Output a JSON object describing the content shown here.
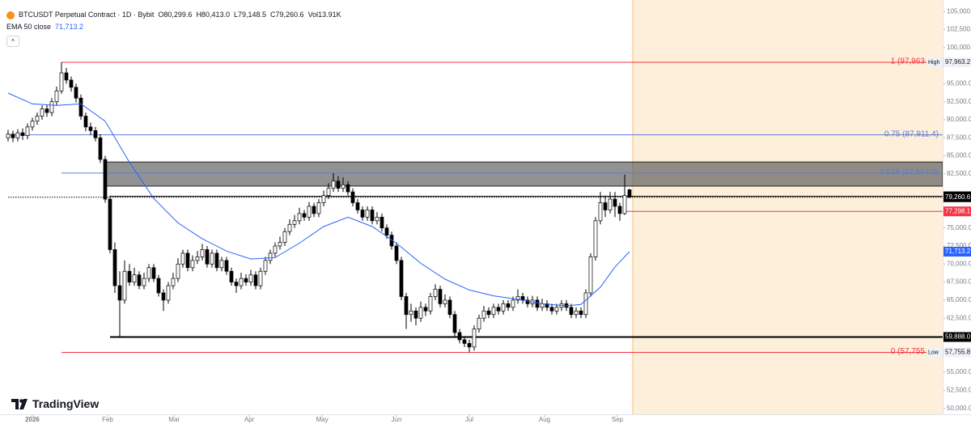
{
  "chart_data": {
    "type": "candlestick",
    "title": "BTCUSDT Perpetual Contract · 1D · Bybit",
    "ohlc_legend": [
      "O80,299.6",
      "H80,413.0",
      "L79,148.5",
      "C79,260.6",
      "Vol13.91K"
    ],
    "brand": "TradingView",
    "xlim": [
      -0.33,
      192.5
    ],
    "ylim": [
      49400,
      105700
    ],
    "grid": false,
    "xticks": [
      {
        "value": 5,
        "label": "2026"
      },
      {
        "value": 20.5,
        "label": "Feb"
      },
      {
        "value": 34.2,
        "label": "Mar"
      },
      {
        "value": 49.7,
        "label": "Apr"
      },
      {
        "value": 64.7,
        "label": "May"
      },
      {
        "value": 80,
        "label": "Jun"
      },
      {
        "value": 95,
        "label": "Jul"
      },
      {
        "value": 110.5,
        "label": "Aug"
      },
      {
        "value": 125.5,
        "label": "Sep"
      }
    ],
    "yticks": [
      {
        "value": 105000,
        "label": "105,000.0"
      },
      {
        "value": 102500,
        "label": "102,500.0"
      },
      {
        "value": 100000,
        "label": "100,000.0"
      },
      {
        "value": 95000,
        "label": "95,000.0"
      },
      {
        "value": 92500,
        "label": "92,500.0"
      },
      {
        "value": 90000,
        "label": "90,000.0"
      },
      {
        "value": 87500,
        "label": "87,500.0"
      },
      {
        "value": 85000,
        "label": "85,000.0"
      },
      {
        "value": 82500,
        "label": "82,500.0"
      },
      {
        "value": 75000,
        "label": "75,000.0"
      },
      {
        "value": 72500,
        "label": "72,500.0"
      },
      {
        "value": 70000,
        "label": "70,000.0"
      },
      {
        "value": 67500,
        "label": "67,500.0"
      },
      {
        "value": 65000,
        "label": "65,000.0"
      },
      {
        "value": 62500,
        "label": "62,500.0"
      },
      {
        "value": 55000,
        "label": "55,000.0"
      },
      {
        "value": 52500,
        "label": "52,500.0"
      },
      {
        "value": 50000,
        "label": "50,000.0"
      }
    ],
    "candles": {
      "up_color": "#ffffff",
      "down_color": "#000000",
      "border_color": "#000000",
      "ohlc": [
        [
          87500,
          88600,
          87000,
          88000
        ],
        [
          88000,
          88500,
          86900,
          87500
        ],
        [
          87500,
          88700,
          87000,
          88200
        ],
        [
          88200,
          88800,
          87200,
          87800
        ],
        [
          87800,
          89500,
          87300,
          89000
        ],
        [
          89000,
          90300,
          88500,
          89800
        ],
        [
          89800,
          91000,
          89300,
          90500
        ],
        [
          90500,
          92000,
          90000,
          91500
        ],
        [
          91500,
          92100,
          90400,
          91000
        ],
        [
          91000,
          93000,
          90500,
          92500
        ],
        [
          92500,
          94600,
          92000,
          94000
        ],
        [
          94000,
          97963.2,
          93600,
          96500
        ],
        [
          96500,
          97200,
          95000,
          95500
        ],
        [
          95500,
          96000,
          93900,
          94500
        ],
        [
          94500,
          95000,
          92400,
          93000
        ],
        [
          93000,
          93500,
          90000,
          90500
        ],
        [
          90500,
          91000,
          88400,
          89000
        ],
        [
          89000,
          89600,
          87900,
          88500
        ],
        [
          88500,
          89000,
          87000,
          87500
        ],
        [
          87500,
          88000,
          84000,
          84500
        ],
        [
          84500,
          85000,
          78500,
          79000
        ],
        [
          79000,
          79500,
          71500,
          72000
        ],
        [
          72000,
          73000,
          66000,
          67000
        ],
        [
          67000,
          69000,
          59888,
          65000
        ],
        [
          65000,
          70500,
          64500,
          69000
        ],
        [
          69000,
          70000,
          67000,
          67500
        ],
        [
          67500,
          69500,
          67000,
          68500
        ],
        [
          68500,
          69000,
          66500,
          67000
        ],
        [
          67000,
          68800,
          66500,
          68000
        ],
        [
          68000,
          70000,
          67500,
          69500
        ],
        [
          69500,
          70000,
          67500,
          68000
        ],
        [
          68000,
          68500,
          65500,
          66000
        ],
        [
          66000,
          66500,
          63500,
          65000
        ],
        [
          65000,
          67500,
          64500,
          67000
        ],
        [
          67000,
          68800,
          66500,
          68000
        ],
        [
          68000,
          70800,
          67500,
          70000
        ],
        [
          70000,
          72000,
          69500,
          71500
        ],
        [
          71500,
          72000,
          69000,
          69500
        ],
        [
          69500,
          71200,
          69000,
          70500
        ],
        [
          70500,
          71800,
          70000,
          71000
        ],
        [
          71000,
          72800,
          70500,
          72000
        ],
        [
          72000,
          72500,
          69500,
          70000
        ],
        [
          70000,
          72000,
          69500,
          71500
        ],
        [
          71500,
          72000,
          69000,
          69500
        ],
        [
          69500,
          71000,
          69000,
          70500
        ],
        [
          70500,
          71000,
          68500,
          69000
        ],
        [
          69000,
          69500,
          67000,
          67500
        ],
        [
          67500,
          68000,
          66000,
          67000
        ],
        [
          67000,
          68800,
          66500,
          68000
        ],
        [
          68000,
          68600,
          67000,
          67500
        ],
        [
          67500,
          69200,
          67000,
          68500
        ],
        [
          68500,
          69000,
          66500,
          67000
        ],
        [
          67000,
          69500,
          66500,
          69000
        ],
        [
          69000,
          71000,
          68500,
          70500
        ],
        [
          70500,
          72000,
          70000,
          71500
        ],
        [
          71500,
          73000,
          71000,
          72500
        ],
        [
          72500,
          73800,
          72000,
          73000
        ],
        [
          73000,
          75000,
          72500,
          74500
        ],
        [
          74500,
          76200,
          74000,
          75500
        ],
        [
          75500,
          76800,
          75000,
          76000
        ],
        [
          76000,
          77800,
          75500,
          77000
        ],
        [
          77000,
          77500,
          76000,
          76500
        ],
        [
          76500,
          78600,
          76000,
          78000
        ],
        [
          78000,
          78500,
          76500,
          77000
        ],
        [
          77000,
          79000,
          76500,
          78500
        ],
        [
          78500,
          80200,
          78000,
          79500
        ],
        [
          79500,
          81200,
          79000,
          80500
        ],
        [
          80500,
          82600,
          80000,
          81500
        ],
        [
          81500,
          82200,
          80000,
          80500
        ],
        [
          80500,
          82000,
          80000,
          81000
        ],
        [
          81000,
          81500,
          79500,
          80000
        ],
        [
          80000,
          80500,
          78000,
          78500
        ],
        [
          78500,
          79000,
          77000,
          77500
        ],
        [
          77500,
          78000,
          76000,
          76500
        ],
        [
          76500,
          78000,
          76000,
          77500
        ],
        [
          77500,
          78000,
          75500,
          76000
        ],
        [
          76000,
          77200,
          75500,
          76500
        ],
        [
          76500,
          77000,
          74500,
          75000
        ],
        [
          75000,
          75500,
          73500,
          74000
        ],
        [
          74000,
          74500,
          72000,
          72500
        ],
        [
          72500,
          73000,
          70000,
          70500
        ],
        [
          70500,
          71000,
          65000,
          65500
        ],
        [
          65500,
          66000,
          61000,
          63000
        ],
        [
          63000,
          64500,
          62000,
          63500
        ],
        [
          63500,
          64000,
          61500,
          62500
        ],
        [
          62500,
          64800,
          62000,
          64000
        ],
        [
          64000,
          64500,
          62800,
          63500
        ],
        [
          63500,
          66000,
          63000,
          65500
        ],
        [
          65500,
          67200,
          65000,
          66500
        ],
        [
          66500,
          67000,
          64000,
          64500
        ],
        [
          64500,
          65800,
          64000,
          65000
        ],
        [
          65000,
          65500,
          62500,
          63000
        ],
        [
          63000,
          63500,
          60000,
          60500
        ],
        [
          60500,
          61000,
          59000,
          59500
        ],
        [
          59500,
          60000,
          58500,
          59000
        ],
        [
          59000,
          59500,
          57755.8,
          58500
        ],
        [
          58500,
          61500,
          58000,
          61000
        ],
        [
          61000,
          63000,
          60500,
          62500
        ],
        [
          62500,
          64200,
          62000,
          63500
        ],
        [
          63500,
          64000,
          62500,
          63000
        ],
        [
          63000,
          64500,
          62500,
          64000
        ],
        [
          64000,
          64500,
          63000,
          63500
        ],
        [
          63500,
          65000,
          63000,
          64500
        ],
        [
          64500,
          65000,
          63500,
          64000
        ],
        [
          64000,
          65500,
          63500,
          65000
        ],
        [
          65000,
          66500,
          64500,
          65500
        ],
        [
          65500,
          66000,
          64500,
          65000
        ],
        [
          65000,
          65500,
          64000,
          64500
        ],
        [
          64500,
          65600,
          64000,
          65000
        ],
        [
          65000,
          65500,
          63500,
          64000
        ],
        [
          64000,
          65200,
          63500,
          64500
        ],
        [
          64500,
          65000,
          63500,
          64000
        ],
        [
          64000,
          64500,
          63000,
          63500
        ],
        [
          63500,
          64500,
          63000,
          64000
        ],
        [
          64000,
          65000,
          63500,
          64500
        ],
        [
          64500,
          65000,
          63500,
          64000
        ],
        [
          64000,
          64500,
          62500,
          63000
        ],
        [
          63000,
          64000,
          62500,
          63500
        ],
        [
          63500,
          64000,
          62500,
          63000
        ],
        [
          63000,
          66500,
          62500,
          66000
        ],
        [
          66000,
          71500,
          65500,
          71000
        ],
        [
          71000,
          76500,
          70500,
          76000
        ],
        [
          76000,
          80000,
          75500,
          78500
        ],
        [
          78500,
          79500,
          76500,
          77500
        ],
        [
          77500,
          80000,
          77000,
          79000
        ],
        [
          79000,
          80000,
          76500,
          78000
        ],
        [
          78000,
          78500,
          76000,
          77000
        ],
        [
          77000,
          82400,
          76800,
          79500
        ],
        [
          80299.6,
          80413.0,
          79148.5,
          79260.6
        ]
      ]
    },
    "ema": {
      "name": "EMA 50 close",
      "value_label": "71,713.2",
      "color": "#2962ff",
      "x": [
        0,
        5,
        10,
        15,
        20,
        25,
        30,
        35,
        40,
        45,
        50,
        55,
        60,
        65,
        70,
        75,
        80,
        85,
        90,
        95,
        100,
        105,
        110,
        115,
        118,
        122,
        125,
        128
      ],
      "values": [
        93700,
        92200,
        92000,
        92200,
        89800,
        84100,
        79100,
        75700,
        73500,
        71800,
        70700,
        70900,
        72900,
        75200,
        76500,
        75200,
        72900,
        70100,
        67900,
        66400,
        65600,
        65100,
        64500,
        64200,
        64400,
        66800,
        69600,
        71713.2
      ]
    },
    "zone": {
      "from": 20,
      "low": 80800,
      "high": 84150,
      "color": "#4a4a4a"
    },
    "levels": [
      {
        "value": 97963.2,
        "text": "1 (97,963",
        "axis_label": "97,963.2",
        "tag": "High",
        "color": "#f23645",
        "from": 11,
        "style": "solid"
      },
      {
        "value": 87911.4,
        "text": "0.75 (87,911.4)",
        "color": "#5b7bd5",
        "from": 0,
        "style": "solid"
      },
      {
        "value": 82604.0,
        "text": "0.618 (82,604.0)",
        "color": "#5b7bd5",
        "from": 11,
        "style": "solid"
      },
      {
        "value": 57755.8,
        "text": "0 (57,755",
        "axis_label": "57,755.8",
        "tag": "Low",
        "color": "#f23645",
        "from": 11,
        "style": "solid"
      },
      {
        "value": 79388.5,
        "axis_label": "79,388.5",
        "color": "#000000",
        "from": 21,
        "style": "solid"
      },
      {
        "value": 79260.6,
        "axis_label": "79,260.6",
        "color": "#000000",
        "from": 0,
        "style": "dotted"
      },
      {
        "value": 77298.1,
        "axis_label": "77,298.1",
        "color": "#f23645",
        "from": 127,
        "style": "solid"
      },
      {
        "value": 59888.0,
        "axis_label": "59,888.0",
        "color": "#000000",
        "from": 21,
        "style": "thick"
      }
    ]
  }
}
